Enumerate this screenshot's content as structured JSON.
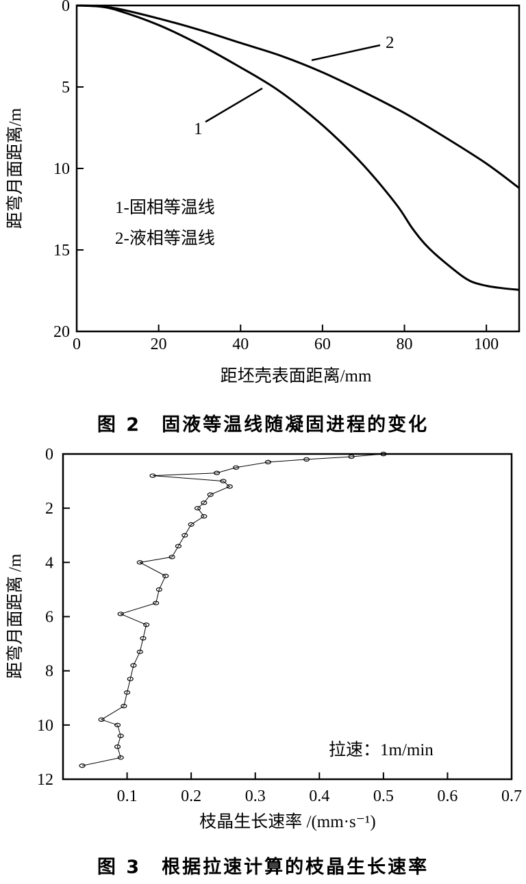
{
  "chart_data": [
    {
      "type": "line",
      "caption": "图 2　固液等温线随凝固进程的变化",
      "xlabel": "距坯壳表面距离/mm",
      "ylabel": "距弯月面距离/m",
      "xlim": [
        0,
        108
      ],
      "ylim": [
        0,
        20
      ],
      "y_inverted": true,
      "xticks": [
        "0",
        "20",
        "40",
        "60",
        "80",
        "100"
      ],
      "yticks": [
        "0",
        "5",
        "10",
        "15",
        "20"
      ],
      "legend": [
        "1-固相等温线",
        "2-液相等温线"
      ],
      "curve_labels": [
        "1",
        "2"
      ],
      "series": [
        {
          "name": "1",
          "x": [
            0,
            5,
            10,
            20,
            30,
            40,
            48,
            55,
            62,
            70,
            78,
            82,
            86,
            92,
            96,
            100,
            104,
            108
          ],
          "y": [
            0,
            0.05,
            0.3,
            1.2,
            2.4,
            3.8,
            5.0,
            6.3,
            7.8,
            9.8,
            12.2,
            13.7,
            14.9,
            16.2,
            16.9,
            17.2,
            17.35,
            17.45
          ]
        },
        {
          "name": "2",
          "x": [
            0,
            5,
            10,
            20,
            30,
            40,
            50,
            60,
            70,
            80,
            90,
            100,
            108
          ],
          "y": [
            0,
            0.05,
            0.2,
            0.8,
            1.5,
            2.3,
            3.1,
            4.1,
            5.3,
            6.6,
            8.1,
            9.7,
            11.2
          ]
        }
      ]
    },
    {
      "type": "scatter",
      "caption": "图 3　根据拉速计算的枝晶生长速率",
      "xlabel": "枝晶生长速率 /(mm·s⁻¹)",
      "ylabel": "距弯月面距离 /m",
      "xlim": [
        0,
        0.7
      ],
      "ylim": [
        0,
        12
      ],
      "y_inverted": true,
      "xticks": [
        "0.1",
        "0.2",
        "0.3",
        "0.4",
        "0.5",
        "0.6",
        "0.7"
      ],
      "yticks": [
        "0",
        "2",
        "4",
        "6",
        "8",
        "10",
        "12"
      ],
      "annotation": "拉速：1m/min",
      "series": [
        {
          "name": "",
          "y": [
            0.0,
            0.1,
            0.2,
            0.3,
            0.5,
            0.7,
            0.8,
            1.0,
            1.2,
            1.5,
            1.8,
            2.0,
            2.3,
            2.6,
            3.0,
            3.4,
            3.8,
            4.0,
            4.5,
            5.0,
            5.5,
            5.9,
            6.3,
            6.8,
            7.3,
            7.8,
            8.3,
            8.8,
            9.3,
            9.8,
            10.0,
            10.4,
            10.8,
            11.2,
            11.5
          ],
          "x": [
            0.5,
            0.45,
            0.38,
            0.32,
            0.27,
            0.24,
            0.14,
            0.25,
            0.26,
            0.23,
            0.22,
            0.21,
            0.22,
            0.2,
            0.19,
            0.18,
            0.17,
            0.12,
            0.16,
            0.15,
            0.145,
            0.09,
            0.13,
            0.125,
            0.12,
            0.11,
            0.105,
            0.1,
            0.095,
            0.06,
            0.085,
            0.09,
            0.085,
            0.09,
            0.03
          ]
        }
      ]
    }
  ]
}
